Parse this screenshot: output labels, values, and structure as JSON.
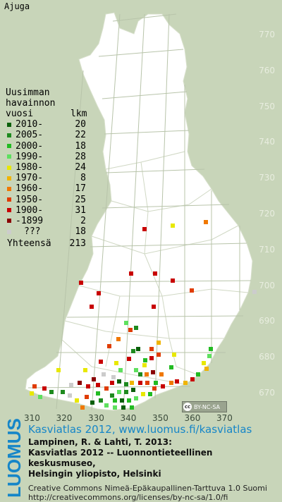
{
  "title": "Ajuga",
  "legend": {
    "heading": [
      "Uusimman",
      "havainnon"
    ],
    "col_left": "vuosi",
    "col_right": "lkm",
    "rows": [
      {
        "label": "2010-",
        "count": "20",
        "color": "#0a5f0a"
      },
      {
        "label": "2005-",
        "count": "22",
        "color": "#1e8a1e"
      },
      {
        "label": "2000-",
        "count": "18",
        "color": "#22bb22"
      },
      {
        "label": "1990-",
        "count": "28",
        "color": "#5ee05e"
      },
      {
        "label": "1980-",
        "count": "24",
        "color": "#e8e800"
      },
      {
        "label": "1970-",
        "count": "8",
        "color": "#f0b400"
      },
      {
        "label": "1960-",
        "count": "17",
        "color": "#f07800"
      },
      {
        "label": "1950-",
        "count": "25",
        "color": "#e03c00"
      },
      {
        "label": "1900-",
        "count": "31",
        "color": "#c80000"
      },
      {
        "label": "-1899",
        "count": "2",
        "color": "#8a0000"
      },
      {
        "label": "???",
        "count": "18",
        "color": "#cccccc"
      }
    ],
    "total_label": "Yhteensä",
    "total_count": "213"
  },
  "y_axis": [
    "770",
    "760",
    "750",
    "740",
    "730",
    "720",
    "710",
    "700",
    "690",
    "680",
    "670"
  ],
  "x_axis": [
    "310",
    "320",
    "330",
    "340",
    "350",
    "360",
    "370"
  ],
  "license_badge": "BY-NC-SA",
  "brand": "LUOMUS",
  "credits": {
    "headline": "Kasviatlas 2012, www.luomus.fi/kasviatlas",
    "ref_lines": [
      "Lampinen, R. & Lahti, T. 2013:",
      "Kasviatlas 2012 -- Luonnontieteellinen keskusmuseo,",
      "Helsingin yliopisto, Helsinki"
    ],
    "license_lines": [
      "Creative Commons Nimeä-Epäkaupallinen-Tarttuva 1.0 Suomi",
      "http://creativecommons.org/licenses/by-nc-sa/1.0/fi"
    ]
  },
  "colors": {
    "background": "#c8d5b9",
    "land": "#ffffff",
    "grid": "#b8c4aa",
    "brand": "#1686c8"
  }
}
